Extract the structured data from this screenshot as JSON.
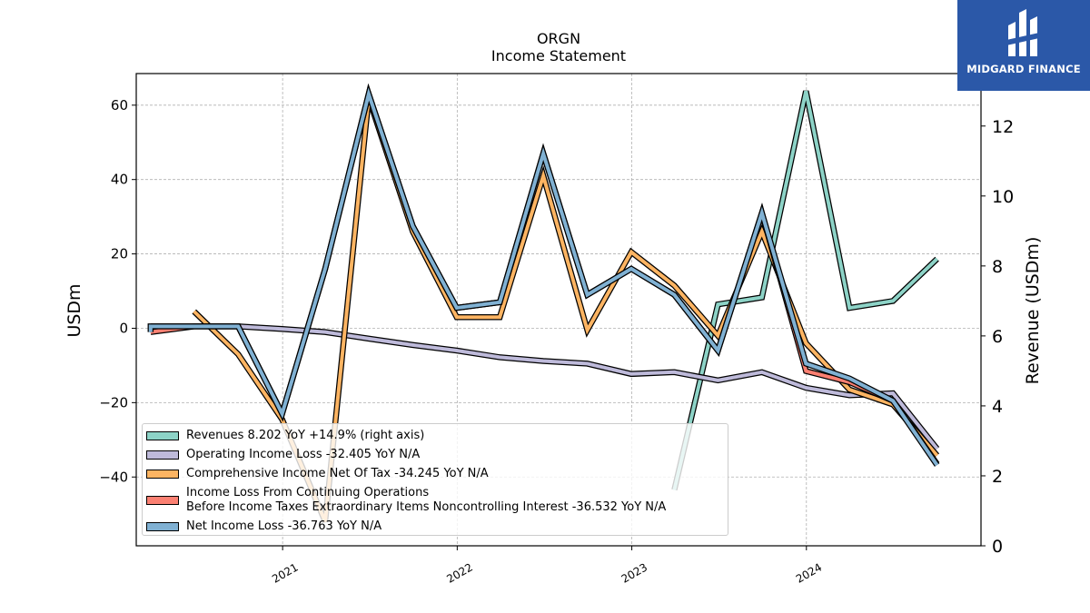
{
  "chart_title": "ORGN",
  "chart_subtitle": "Income Statement",
  "brand": {
    "name": "MIDGARD FINANCE",
    "color": "#2b58a8"
  },
  "chart_data": {
    "type": "line",
    "ylabel": "USDm",
    "ylabel_right": "Revenue (USDm)",
    "ylim": [
      -58.5,
      68.5
    ],
    "ylim_right": [
      0,
      13.5
    ],
    "xlim": [
      "2020-03-01",
      "2024-12-31"
    ],
    "y_ticks": [
      -40,
      -20,
      0,
      20,
      40,
      60
    ],
    "y_ticks_right": [
      0,
      2,
      4,
      6,
      8,
      10,
      12
    ],
    "x_ticks": [
      {
        "label": "2021",
        "date": "2021-01-01"
      },
      {
        "label": "2022",
        "date": "2022-01-01"
      },
      {
        "label": "2023",
        "date": "2023-01-01"
      },
      {
        "label": "2024",
        "date": "2024-01-01"
      }
    ],
    "grid": true,
    "legend_position": "lower-left",
    "series": [
      {
        "name": "Revenues",
        "legend": "Revenues  8.202 YoY +14.9% (right axis)",
        "axis": "right",
        "color": "#8dd3c7",
        "points": [
          [
            "2023-03-31",
            1.6
          ],
          [
            "2023-06-30",
            6.9
          ],
          [
            "2023-09-30",
            7.1
          ],
          [
            "2023-12-31",
            13.0
          ],
          [
            "2024-03-31",
            6.8
          ],
          [
            "2024-06-30",
            7.0
          ],
          [
            "2024-09-30",
            8.2
          ]
        ]
      },
      {
        "name": "Operating Income Loss",
        "legend": "Operating Income Loss  -32.405 YoY N/A",
        "axis": "left",
        "color": "#bebada",
        "points": [
          [
            "2020-03-31",
            0.5
          ],
          [
            "2020-06-30",
            0.5
          ],
          [
            "2020-09-30",
            0.5
          ],
          [
            "2020-12-31",
            -0.2
          ],
          [
            "2021-03-31",
            -1.0
          ],
          [
            "2021-06-30",
            -2.8
          ],
          [
            "2021-09-30",
            -4.5
          ],
          [
            "2021-12-31",
            -6.0
          ],
          [
            "2022-03-31",
            -7.8
          ],
          [
            "2022-06-30",
            -8.8
          ],
          [
            "2022-09-30",
            -9.5
          ],
          [
            "2022-12-31",
            -12.3
          ],
          [
            "2023-03-31",
            -11.8
          ],
          [
            "2023-06-30",
            -14.0
          ],
          [
            "2023-09-30",
            -11.8
          ],
          [
            "2023-12-31",
            -16.0
          ],
          [
            "2024-03-31",
            -18.0
          ],
          [
            "2024-06-30",
            -17.5
          ],
          [
            "2024-09-30",
            -32.4
          ]
        ]
      },
      {
        "name": "Comprehensive Income Net Of Tax",
        "legend": "Comprehensive Income Net Of Tax  -34.245 YoY N/A",
        "axis": "left",
        "color": "#fdb462",
        "points": [
          [
            "2020-06-30",
            4.5
          ],
          [
            "2020-09-30",
            -7.0
          ],
          [
            "2020-12-31",
            -24.5
          ],
          [
            "2021-03-31",
            -52.0
          ],
          [
            "2021-06-30",
            62.0
          ],
          [
            "2021-09-30",
            26.0
          ],
          [
            "2021-12-31",
            3.0
          ],
          [
            "2022-03-31",
            3.0
          ],
          [
            "2022-06-30",
            41.0
          ],
          [
            "2022-09-30",
            -0.5
          ],
          [
            "2022-12-31",
            20.5
          ],
          [
            "2023-03-31",
            11.5
          ],
          [
            "2023-06-30",
            -2.0
          ],
          [
            "2023-09-30",
            26.0
          ],
          [
            "2023-12-31",
            -4.0
          ],
          [
            "2024-03-31",
            -16.5
          ],
          [
            "2024-06-30",
            -20.5
          ],
          [
            "2024-09-30",
            -34.2
          ]
        ]
      },
      {
        "name": "Income Loss From Continuing Operations Before Income Taxes Extraordinary Items Noncontrolling Interest",
        "legend_line1": "Income Loss From Continuing Operations",
        "legend_line2": "Before Income Taxes Extraordinary Items Noncontrolling Interest  -36.532 YoY N/A",
        "axis": "left",
        "color": "#fb8072",
        "points": [
          [
            "2020-03-31",
            -1.0
          ],
          [
            "2020-06-30",
            0.5
          ],
          [
            "2020-09-30",
            0.5
          ],
          [
            "2020-12-31",
            -23.0
          ],
          [
            "2021-03-31",
            16.0
          ],
          [
            "2021-06-30",
            63.0
          ],
          [
            "2021-09-30",
            27.5
          ],
          [
            "2021-12-31",
            5.5
          ],
          [
            "2022-03-31",
            7.0
          ],
          [
            "2022-06-30",
            47.0
          ],
          [
            "2022-09-30",
            9.0
          ],
          [
            "2022-12-31",
            16.0
          ],
          [
            "2023-03-31",
            9.0
          ],
          [
            "2023-06-30",
            -6.0
          ],
          [
            "2023-09-30",
            31.0
          ],
          [
            "2023-12-31",
            -11.5
          ],
          [
            "2024-03-31",
            -14.5
          ],
          [
            "2024-06-30",
            -19.5
          ],
          [
            "2024-09-30",
            -36.5
          ]
        ]
      },
      {
        "name": "Net Income Loss",
        "legend": "Net Income Loss  -36.763 YoY N/A",
        "axis": "left",
        "color": "#80b1d3",
        "points": [
          [
            "2020-03-31",
            -1.0
          ],
          [
            "2020-03-31",
            0.5
          ],
          [
            "2020-06-30",
            0.5
          ],
          [
            "2020-09-30",
            0.5
          ],
          [
            "2020-12-31",
            -23.0
          ],
          [
            "2021-03-31",
            16.0
          ],
          [
            "2021-06-30",
            63.0
          ],
          [
            "2021-09-30",
            27.5
          ],
          [
            "2021-12-31",
            5.5
          ],
          [
            "2022-03-31",
            7.0
          ],
          [
            "2022-06-30",
            47.0
          ],
          [
            "2022-09-30",
            9.0
          ],
          [
            "2022-12-31",
            16.0
          ],
          [
            "2023-03-31",
            9.0
          ],
          [
            "2023-06-30",
            -6.0
          ],
          [
            "2023-09-30",
            31.0
          ],
          [
            "2023-12-31",
            -9.5
          ],
          [
            "2024-03-31",
            -13.5
          ],
          [
            "2024-06-30",
            -19.5
          ],
          [
            "2024-09-30",
            -36.8
          ]
        ]
      }
    ]
  }
}
